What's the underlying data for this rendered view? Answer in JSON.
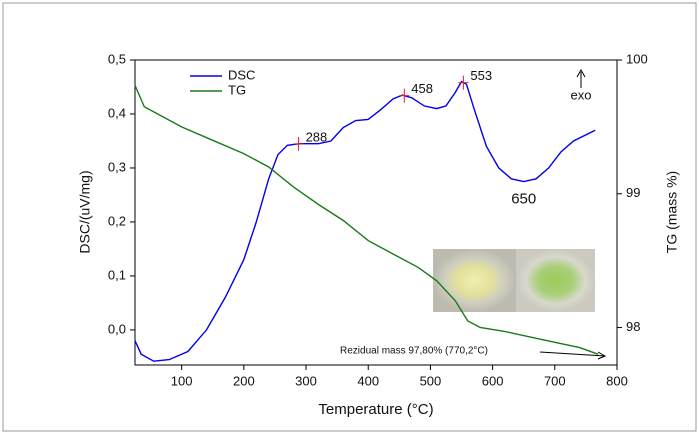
{
  "chart_data": {
    "type": "line",
    "xlabel": "Temperature (°C)",
    "ylabel": "DSC/(uV/mg)",
    "y2label": "TG (mass %)",
    "xlim": [
      25,
      800
    ],
    "xticks": [
      100,
      200,
      300,
      400,
      500,
      600,
      700,
      800
    ],
    "ylim": [
      -0.065,
      0.5
    ],
    "yticks": [
      {
        "value": 0,
        "label": "0,0"
      },
      {
        "value": 0.1,
        "label": "0,1"
      },
      {
        "value": 0.2,
        "label": "0,2"
      },
      {
        "value": 0.3,
        "label": "0,3"
      },
      {
        "value": 0.4,
        "label": "0,4"
      },
      {
        "value": 0.5,
        "label": "0,5"
      }
    ],
    "y2lim": [
      97.72,
      100
    ],
    "y2ticks": [
      98,
      99,
      100
    ],
    "legend": "upper left",
    "series": [
      {
        "name": "DSC",
        "color": "#0000ee",
        "x": [
          25,
          35,
          55,
          80,
          110,
          140,
          170,
          200,
          220,
          240,
          255,
          270,
          290,
          320,
          340,
          360,
          380,
          400,
          420,
          440,
          455,
          470,
          490,
          510,
          525,
          540,
          550,
          558,
          570,
          590,
          610,
          630,
          650,
          670,
          690,
          710,
          730,
          765
        ],
        "values": [
          -0.02,
          -0.045,
          -0.058,
          -0.055,
          -0.04,
          0.0,
          0.06,
          0.13,
          0.2,
          0.28,
          0.325,
          0.342,
          0.345,
          0.345,
          0.35,
          0.375,
          0.388,
          0.39,
          0.408,
          0.428,
          0.435,
          0.43,
          0.415,
          0.41,
          0.415,
          0.44,
          0.46,
          0.455,
          0.41,
          0.34,
          0.3,
          0.28,
          0.275,
          0.28,
          0.3,
          0.33,
          0.35,
          0.37
        ]
      },
      {
        "name": "TG",
        "color": "#1a7a1a",
        "axis": "y2",
        "x": [
          25,
          40,
          60,
          100,
          150,
          200,
          240,
          280,
          320,
          360,
          400,
          440,
          480,
          510,
          540,
          560,
          580,
          620,
          660,
          700,
          740,
          770
        ],
        "values": [
          99.81,
          99.65,
          99.6,
          99.5,
          99.4,
          99.3,
          99.2,
          99.05,
          98.92,
          98.8,
          98.65,
          98.55,
          98.45,
          98.35,
          98.2,
          98.05,
          98.0,
          97.97,
          97.93,
          97.89,
          97.85,
          97.8
        ]
      }
    ],
    "peak_marks": [
      288,
      458,
      553
    ],
    "valley_label": 650,
    "exo_label": "exo",
    "residual_note": "Rezidual mass 97,80% (770,2°C)"
  }
}
